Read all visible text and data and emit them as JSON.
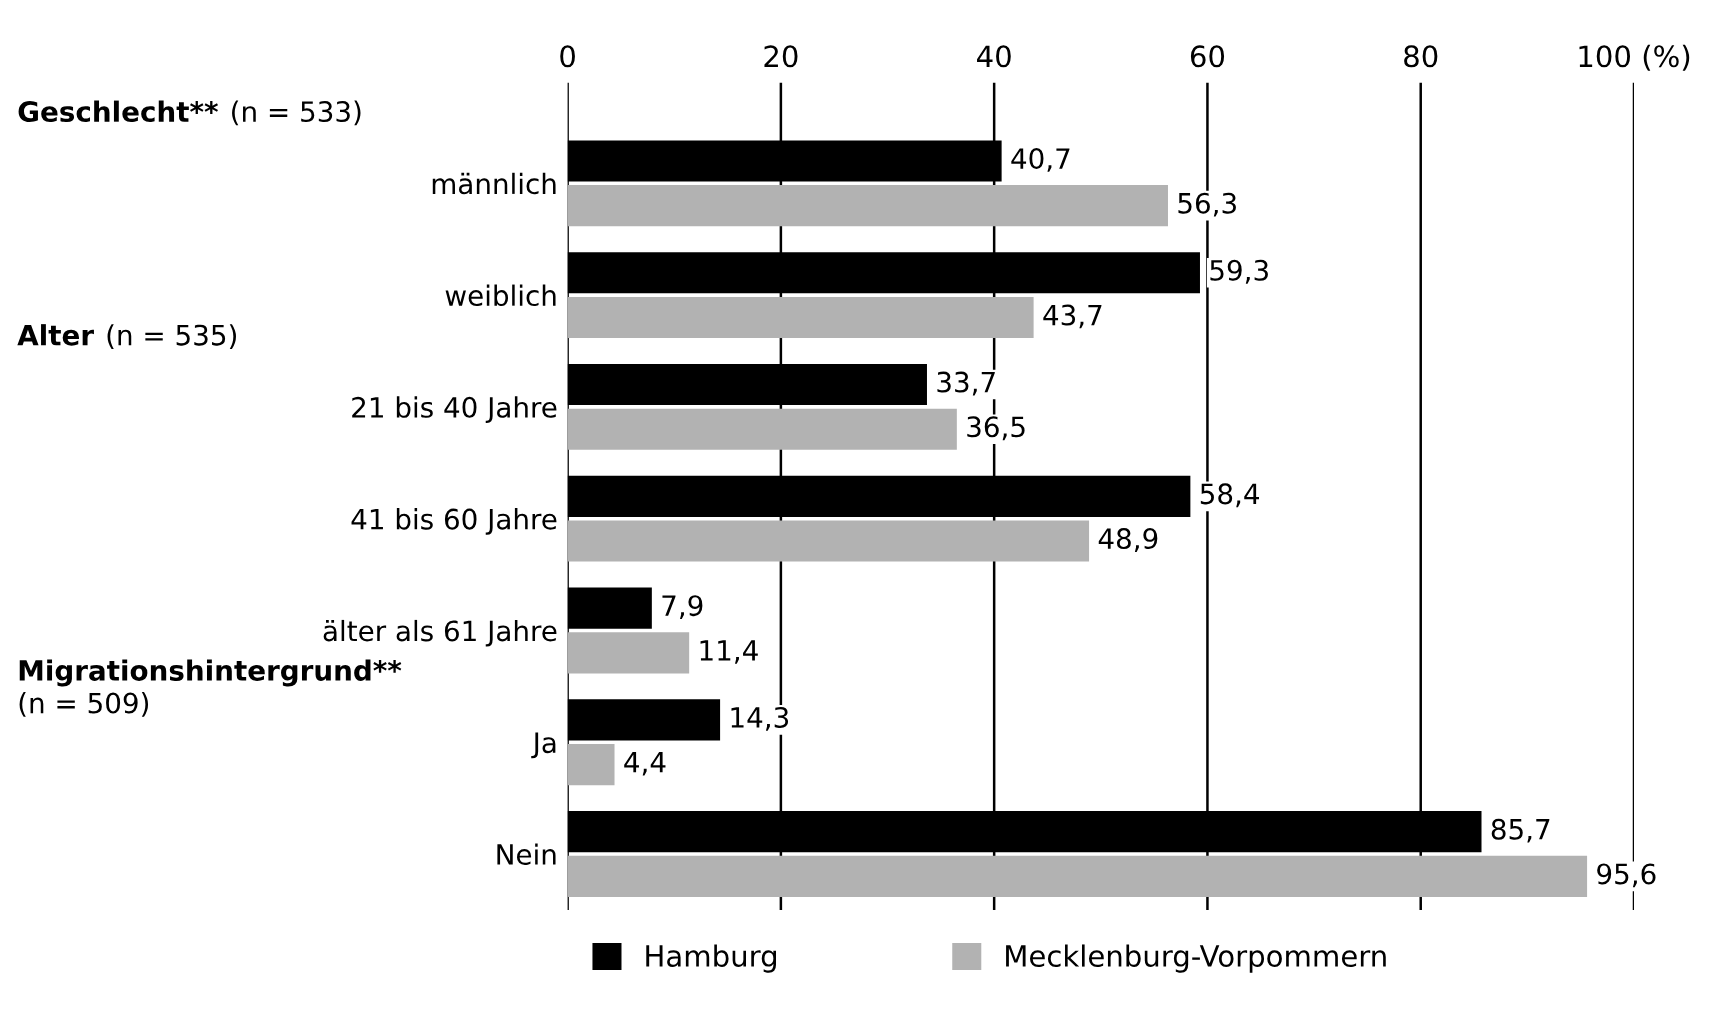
{
  "chart_data": {
    "type": "bar",
    "orientation": "horizontal",
    "categories": [
      "männlich",
      "weiblich",
      "21 bis 40 Jahre",
      "41 bis 60 Jahre",
      "älter als 61 Jahre",
      "Ja",
      "Nein"
    ],
    "series": [
      {
        "name": "Hamburg",
        "color": "#000000",
        "values": [
          40.7,
          59.3,
          33.7,
          58.4,
          7.9,
          14.3,
          85.7
        ],
        "value_labels": [
          "40,7",
          "59,3",
          "33,7",
          "58,4",
          "7,9",
          "14,3",
          "85,7"
        ]
      },
      {
        "name": "Mecklenburg-Vorpommern",
        "color": "#b2b2b2",
        "values": [
          56.3,
          43.7,
          36.5,
          48.9,
          11.4,
          4.4,
          95.6
        ],
        "value_labels": [
          "56,3",
          "43,7",
          "36,5",
          "48,9",
          "11,4",
          "4,4",
          "95,6"
        ]
      }
    ],
    "xlim": [
      0,
      100
    ],
    "xticks": [
      0,
      20,
      40,
      60,
      80,
      {
        "value": 100,
        "label": "100 (%)"
      }
    ],
    "grid": "x",
    "legend": "bottom",
    "annotations": [
      "Geschlecht**",
      "(n = 533)",
      "Alter",
      "(n = 535)",
      "Migrationshintergrund**",
      "(n = 509)"
    ]
  }
}
